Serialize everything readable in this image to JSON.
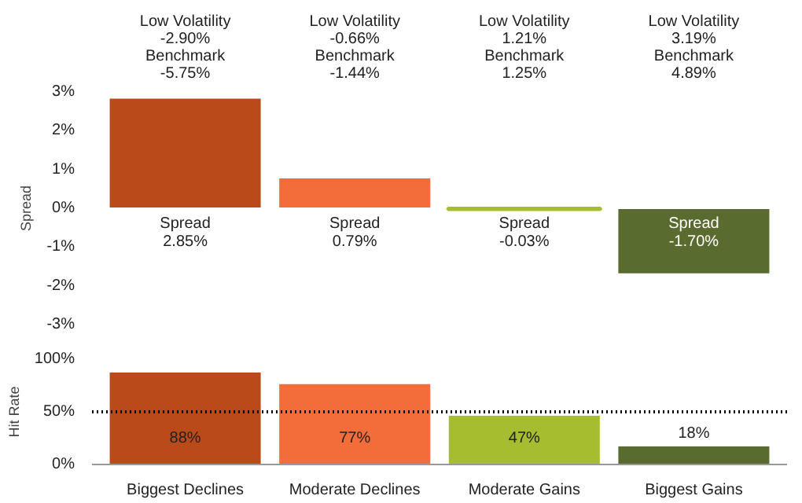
{
  "chart_data": [
    {
      "type": "bar",
      "ylabel": "Spread",
      "categories": [
        null,
        null,
        null,
        null
      ],
      "values": [
        2.85,
        0.79,
        -0.03,
        -1.7
      ],
      "colors": [
        "#bb4a1a",
        "#f26d3a",
        "#a5bd2e",
        "#5a6b2f"
      ],
      "value_labels": [
        "Spread\n2.85%",
        "Spread\n0.79%",
        "Spread\n-0.03%",
        "Spread\n-1.70%"
      ],
      "ylim": [
        -3,
        3
      ],
      "yticks": [
        {
          "value": -3,
          "label": "-3%"
        },
        {
          "value": -2,
          "label": "-2%"
        },
        {
          "value": -1,
          "label": "-1%"
        },
        {
          "value": 0,
          "label": "0%"
        },
        {
          "value": 1,
          "label": "1%"
        },
        {
          "value": 2,
          "label": "2%"
        },
        {
          "value": 3,
          "label": "3%"
        }
      ],
      "tick_labels": "y",
      "grid": false,
      "annotations": [
        "Low Volatility\n-2.90%\nBenchmark\n-5.75%",
        "Low Volatility\n-0.66%\nBenchmark\n-1.44%",
        "Low Volatility\n1.21%\nBenchmark\n1.25%",
        "Low Volatility\n3.19%\nBenchmark\n4.89%"
      ]
    },
    {
      "type": "bar",
      "ylabel": "Hit Rate",
      "categories": [
        "Biggest Declines",
        "Moderate Declines",
        "Moderate Gains",
        "Biggest Gains"
      ],
      "values": [
        88,
        77,
        47,
        18
      ],
      "colors": [
        "#bb4a1a",
        "#f26d3a",
        "#a5bd2e",
        "#5a6b2f"
      ],
      "value_labels": [
        "88%",
        "77%",
        "47%",
        "18%"
      ],
      "ylim": [
        0,
        100
      ],
      "yticks": [
        {
          "value": 0,
          "label": "0%"
        },
        {
          "value": 50,
          "label": "50%"
        },
        {
          "value": 100,
          "label": "100%"
        }
      ],
      "grid": false,
      "ref_lines": [
        {
          "axis": "y",
          "value": 50,
          "color": "#000000",
          "line_style": "dotted"
        }
      ]
    }
  ]
}
